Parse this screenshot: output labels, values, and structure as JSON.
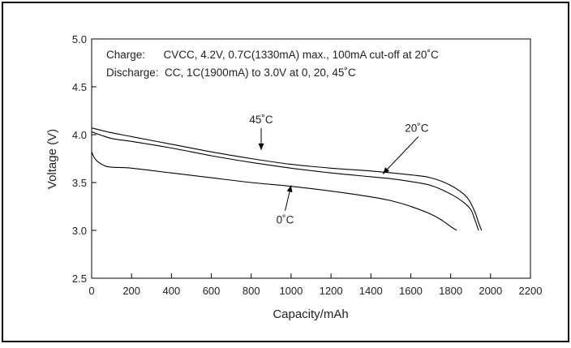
{
  "chart_data": {
    "type": "line",
    "title": "",
    "xlabel": "Capacity/mAh",
    "ylabel": "Voltage (V)",
    "xlim": [
      0,
      2200
    ],
    "ylim": [
      2.5,
      5.0
    ],
    "xticks": [
      "0",
      "200",
      "400",
      "600",
      "800",
      "1000",
      "1200",
      "1400",
      "1600",
      "1800",
      "2000",
      "2200"
    ],
    "yticks": [
      "2.5",
      "3.0",
      "3.5",
      "4.0",
      "4.5",
      "5.0"
    ],
    "grid": false,
    "annotations": [
      "Charge:      CVCC, 4.2V, 0.7C(1330mA) max., 100mA cut-off at 20˚C",
      "Discharge:  CC, 1C(1900mA) to 3.0V at 0, 20, 45˚C"
    ],
    "series": [
      {
        "name": "45˚C",
        "x": [
          0,
          100,
          200,
          400,
          600,
          800,
          1000,
          1200,
          1400,
          1600,
          1700,
          1800,
          1880,
          1920,
          1940,
          1955
        ],
        "y": [
          4.07,
          4.02,
          3.98,
          3.9,
          3.82,
          3.75,
          3.69,
          3.65,
          3.62,
          3.58,
          3.55,
          3.47,
          3.35,
          3.2,
          3.08,
          3.0
        ]
      },
      {
        "name": "20˚C",
        "x": [
          0,
          100,
          200,
          400,
          600,
          800,
          1000,
          1200,
          1400,
          1500,
          1600,
          1700,
          1800,
          1860,
          1900,
          1920,
          1940
        ],
        "y": [
          4.03,
          3.96,
          3.93,
          3.86,
          3.78,
          3.71,
          3.65,
          3.6,
          3.56,
          3.54,
          3.51,
          3.47,
          3.38,
          3.3,
          3.22,
          3.12,
          3.0
        ]
      },
      {
        "name": "0˚C",
        "x": [
          0,
          20,
          60,
          100,
          200,
          400,
          600,
          800,
          1000,
          1200,
          1400,
          1500,
          1600,
          1700,
          1760,
          1800,
          1830
        ],
        "y": [
          3.82,
          3.74,
          3.68,
          3.66,
          3.65,
          3.6,
          3.55,
          3.5,
          3.46,
          3.41,
          3.35,
          3.31,
          3.25,
          3.17,
          3.1,
          3.04,
          3.0
        ]
      }
    ],
    "series_labels": [
      {
        "text": "45˚C",
        "label_x": 850,
        "label_y": 4.12,
        "arrow_to_x": 850,
        "arrow_to_y": 3.84
      },
      {
        "text": "20˚C",
        "label_x": 1630,
        "label_y": 4.03,
        "arrow_to_x": 1460,
        "arrow_to_y": 3.59
      },
      {
        "text": "0˚C",
        "label_x": 970,
        "label_y": 3.07,
        "arrow_to_x": 1000,
        "arrow_to_y": 3.47
      }
    ]
  }
}
